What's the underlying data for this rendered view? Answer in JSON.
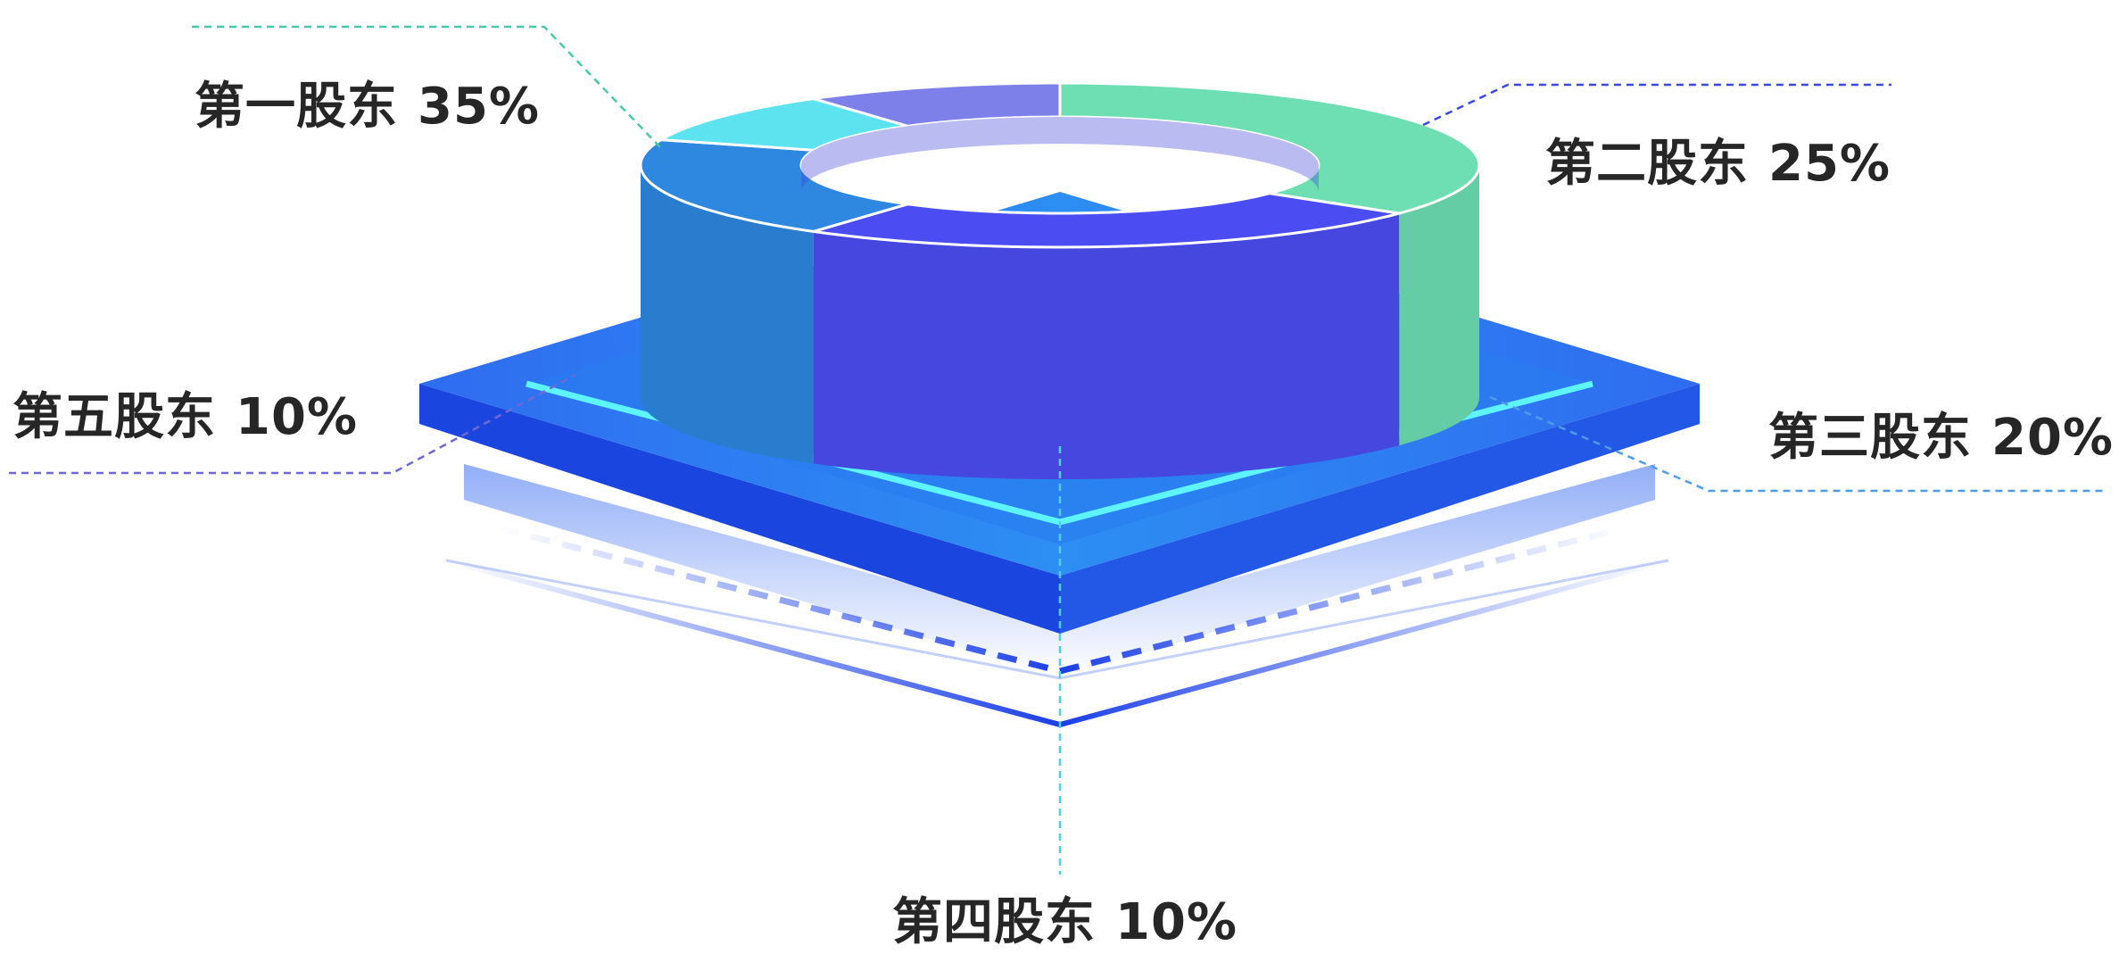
{
  "chart_data": {
    "type": "pie",
    "style": "3d-donut",
    "slices": [
      {
        "name": "第一股东",
        "value": 35,
        "value_label": "35%",
        "color": "#6ddfb3"
      },
      {
        "name": "第二股东",
        "value": 25,
        "value_label": "25%",
        "color": "#4b4df2"
      },
      {
        "name": "第三股东",
        "value": 20,
        "value_label": "20%",
        "color": "#2e88e0"
      },
      {
        "name": "第四股东",
        "value": 10,
        "value_label": "10%",
        "color": "#5ce3ef"
      },
      {
        "name": "第五股东",
        "value": 10,
        "value_label": "10%",
        "color": "#7d80e8"
      }
    ],
    "base_color": "#2266ee",
    "accent_color": "#5ef4ff"
  }
}
